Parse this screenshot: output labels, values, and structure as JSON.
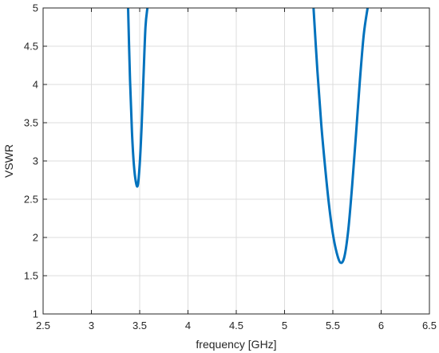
{
  "chart_data": {
    "type": "line",
    "title": "",
    "xlabel": "frequency [GHz]",
    "ylabel": "VSWR",
    "xlim": [
      2.5,
      6.5
    ],
    "ylim": [
      1,
      5
    ],
    "xticks": [
      2.5,
      3,
      3.5,
      4,
      4.5,
      5,
      5.5,
      6,
      6.5
    ],
    "yticks": [
      1,
      1.5,
      2,
      2.5,
      3,
      3.5,
      4,
      4.5,
      5
    ],
    "xtick_labels": [
      "2.5",
      "3",
      "3.5",
      "4",
      "4.5",
      "5",
      "5.5",
      "6",
      "6.5"
    ],
    "ytick_labels": [
      "1",
      "1.5",
      "2",
      "2.5",
      "3",
      "3.5",
      "4",
      "4.5",
      "5"
    ],
    "grid": true,
    "series": [
      {
        "color": "#0072bd",
        "segments": [
          {
            "x": [
              3.38,
              3.4,
              3.42,
              3.44,
              3.46,
              3.48,
              3.5,
              3.52,
              3.54,
              3.56,
              3.58
            ],
            "y": [
              5.0,
              4.06,
              3.38,
              2.95,
              2.73,
              2.68,
              2.95,
              3.45,
              4.12,
              4.75,
              5.0
            ]
          },
          {
            "x": [
              5.3,
              5.34,
              5.38,
              5.42,
              5.46,
              5.5,
              5.54,
              5.58,
              5.62,
              5.66,
              5.7,
              5.74,
              5.78,
              5.82,
              5.86
            ],
            "y": [
              5.0,
              4.18,
              3.48,
              2.92,
              2.43,
              2.05,
              1.8,
              1.67,
              1.75,
              2.1,
              2.68,
              3.35,
              4.05,
              4.65,
              5.0
            ]
          }
        ]
      }
    ]
  }
}
